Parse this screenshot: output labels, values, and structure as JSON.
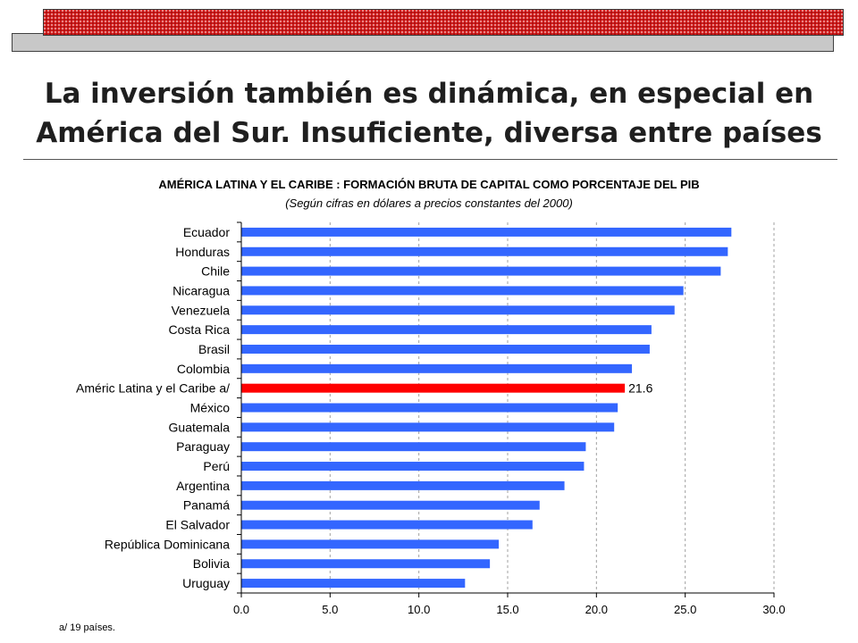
{
  "slide": {
    "title_line1": "La inversión también es dinámica, en especial en",
    "title_line2": "América del Sur. Insuficiente, diversa entre países"
  },
  "chart_data": {
    "type": "bar",
    "orientation": "horizontal",
    "title": "AMÉRICA LATINA Y EL CARIBE : FORMACIÓN BRUTA DE CAPITAL COMO PORCENTAJE DEL PIB",
    "subtitle": "(Según cifras en dólares a precios constantes del 2000)",
    "categories": [
      "Ecuador",
      "Honduras",
      "Chile",
      "Nicaragua",
      "Venezuela",
      "Costa Rica",
      "Brasil",
      "Colombia",
      "Améric Latina y el Caribe a/",
      "México",
      "Guatemala",
      "Paraguay",
      "Perú",
      "Argentina",
      "Panamá",
      "El Salvador",
      "República Dominicana",
      "Bolivia",
      "Uruguay"
    ],
    "values": [
      27.6,
      27.4,
      27.0,
      24.9,
      24.4,
      23.1,
      23.0,
      22.0,
      21.6,
      21.2,
      21.0,
      19.4,
      19.3,
      18.2,
      16.8,
      16.4,
      14.5,
      14.0,
      12.6
    ],
    "highlight_category": "Améric Latina y el Caribe a/",
    "highlight_label": "21.6",
    "xlim": [
      0,
      30
    ],
    "xticks": [
      "0.0",
      "5.0",
      "10.0",
      "15.0",
      "20.0",
      "25.0",
      "30.0"
    ],
    "xgrid": true,
    "colors": {
      "bar": "#3366ff",
      "highlight": "#ff0000",
      "grid": "#a0a0a0",
      "axis": "#000000"
    }
  },
  "footnote": "a/ 19 países."
}
